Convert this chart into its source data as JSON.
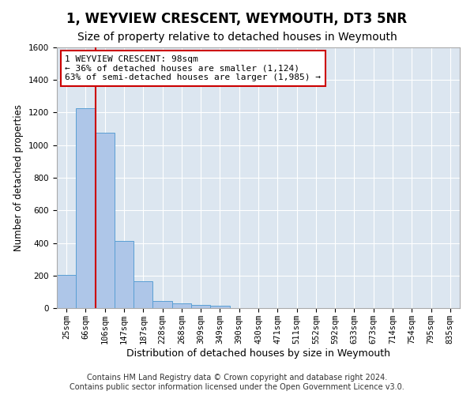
{
  "title": "1, WEYVIEW CRESCENT, WEYMOUTH, DT3 5NR",
  "subtitle": "Size of property relative to detached houses in Weymouth",
  "xlabel": "Distribution of detached houses by size in Weymouth",
  "ylabel": "Number of detached properties",
  "bar_labels": [
    "25sqm",
    "66sqm",
    "106sqm",
    "147sqm",
    "187sqm",
    "228sqm",
    "268sqm",
    "309sqm",
    "349sqm",
    "390sqm",
    "430sqm",
    "471sqm",
    "511sqm",
    "552sqm",
    "592sqm",
    "633sqm",
    "673sqm",
    "714sqm",
    "754sqm",
    "795sqm",
    "835sqm"
  ],
  "bar_values": [
    205,
    1225,
    1075,
    410,
    165,
    45,
    28,
    18,
    15,
    0,
    0,
    0,
    0,
    0,
    0,
    0,
    0,
    0,
    0,
    0,
    0
  ],
  "bar_color": "#aec6e8",
  "bar_edge_color": "#5a9fd4",
  "annotation_text": "1 WEYVIEW CRESCENT: 98sqm\n← 36% of detached houses are smaller (1,124)\n63% of semi-detached houses are larger (1,985) →",
  "annotation_box_color": "#ffffff",
  "annotation_box_edge": "#cc0000",
  "vline_color": "#cc0000",
  "vline_x": 1.5,
  "ylim": [
    0,
    1600
  ],
  "yticks": [
    0,
    200,
    400,
    600,
    800,
    1000,
    1200,
    1400,
    1600
  ],
  "plot_background": "#dce6f0",
  "grid_color": "#ffffff",
  "footer1": "Contains HM Land Registry data © Crown copyright and database right 2024.",
  "footer2": "Contains public sector information licensed under the Open Government Licence v3.0.",
  "title_fontsize": 12,
  "subtitle_fontsize": 10,
  "xlabel_fontsize": 9,
  "ylabel_fontsize": 8.5,
  "tick_fontsize": 7.5,
  "annotation_fontsize": 8,
  "footer_fontsize": 7
}
